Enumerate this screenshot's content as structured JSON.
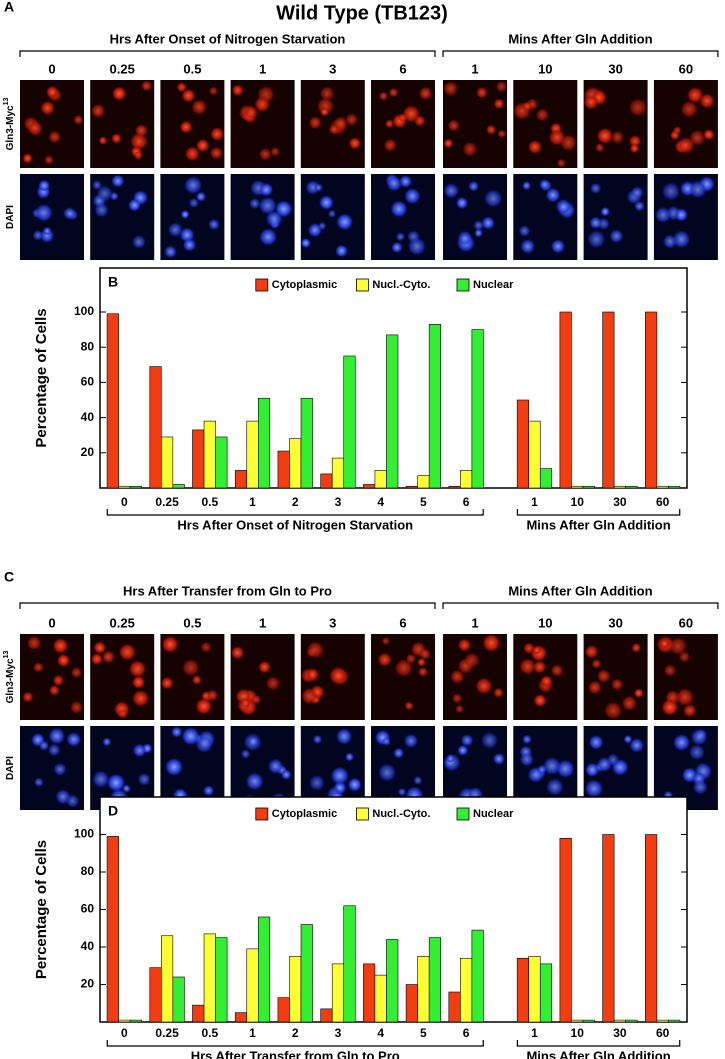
{
  "title": "Wild Type (TB123)",
  "image_panels": [
    {
      "label": "A",
      "groups": [
        {
          "label": "Hrs After Onset of Nitrogen Starvation",
          "columns": [
            "0",
            "0.25",
            "0.5",
            "1",
            "3",
            "6"
          ]
        },
        {
          "label": "Mins After Gln Addition",
          "columns": [
            "1",
            "10",
            "30",
            "60"
          ]
        }
      ],
      "rows": [
        {
          "text": "Gln3-Myc",
          "superscript": "13"
        },
        {
          "text": "DAPI"
        }
      ]
    },
    {
      "label": "C",
      "groups": [
        {
          "label": "Hrs After Transfer from Gln to Pro",
          "columns": [
            "0",
            "0.25",
            "0.5",
            "1",
            "3",
            "6"
          ]
        },
        {
          "label": "Mins After Gln Addition",
          "columns": [
            "1",
            "10",
            "30",
            "60"
          ]
        }
      ],
      "rows": [
        {
          "text": "Gln3-Myc",
          "superscript": "13"
        },
        {
          "text": "DAPI"
        }
      ]
    }
  ],
  "chart_data": [
    {
      "type": "bar",
      "panel_label": "B",
      "ylabel": "Percentage of Cells",
      "groups": [
        {
          "label": "Hrs After Onset of Nitrogen Starvation",
          "categories": [
            "0",
            "0.25",
            "0.5",
            "1",
            "2",
            "3",
            "4",
            "5",
            "6"
          ]
        },
        {
          "label": "Mins After Gln Addition",
          "categories": [
            "1",
            "10",
            "30",
            "60"
          ]
        }
      ],
      "series": [
        {
          "name": "Cytoplasmic",
          "color": "#f23d12",
          "values": [
            99,
            69,
            33,
            10,
            21,
            8,
            2,
            1,
            1,
            50,
            100,
            100,
            100
          ]
        },
        {
          "name": "Nucl.-Cyto.",
          "color": "#ffff33",
          "values": [
            1,
            29,
            38,
            38,
            28,
            17,
            10,
            7,
            10,
            38,
            1,
            1,
            1
          ]
        },
        {
          "name": "Nuclear",
          "color": "#33ee33",
          "values": [
            1,
            2,
            29,
            51,
            51,
            75,
            87,
            93,
            90,
            11,
            1,
            1,
            1
          ]
        }
      ],
      "ylim": [
        0,
        125
      ],
      "yticks": [
        20,
        40,
        60,
        80,
        100
      ],
      "legend": "top"
    },
    {
      "type": "bar",
      "panel_label": "D",
      "ylabel": "Percentage of Cells",
      "groups": [
        {
          "label": "Hrs After Transfer from Gln to Pro",
          "categories": [
            "0",
            "0.25",
            "0.5",
            "1",
            "2",
            "3",
            "4",
            "5",
            "6"
          ]
        },
        {
          "label": "Mins After Gln Addition",
          "categories": [
            "1",
            "10",
            "30",
            "60"
          ]
        }
      ],
      "series": [
        {
          "name": "Cytoplasmic",
          "color": "#f23d12",
          "values": [
            99,
            29,
            9,
            5,
            13,
            7,
            31,
            20,
            16,
            34,
            98,
            100,
            100
          ]
        },
        {
          "name": "Nucl.-Cyto.",
          "color": "#ffff33",
          "values": [
            1,
            46,
            47,
            39,
            35,
            31,
            25,
            35,
            34,
            35,
            1,
            1,
            1
          ]
        },
        {
          "name": "Nuclear",
          "color": "#33ee33",
          "values": [
            1,
            24,
            45,
            56,
            52,
            62,
            44,
            45,
            49,
            31,
            1,
            1,
            1
          ]
        }
      ],
      "ylim": [
        0,
        120
      ],
      "yticks": [
        20,
        40,
        60,
        80,
        100
      ],
      "legend": "top"
    }
  ]
}
